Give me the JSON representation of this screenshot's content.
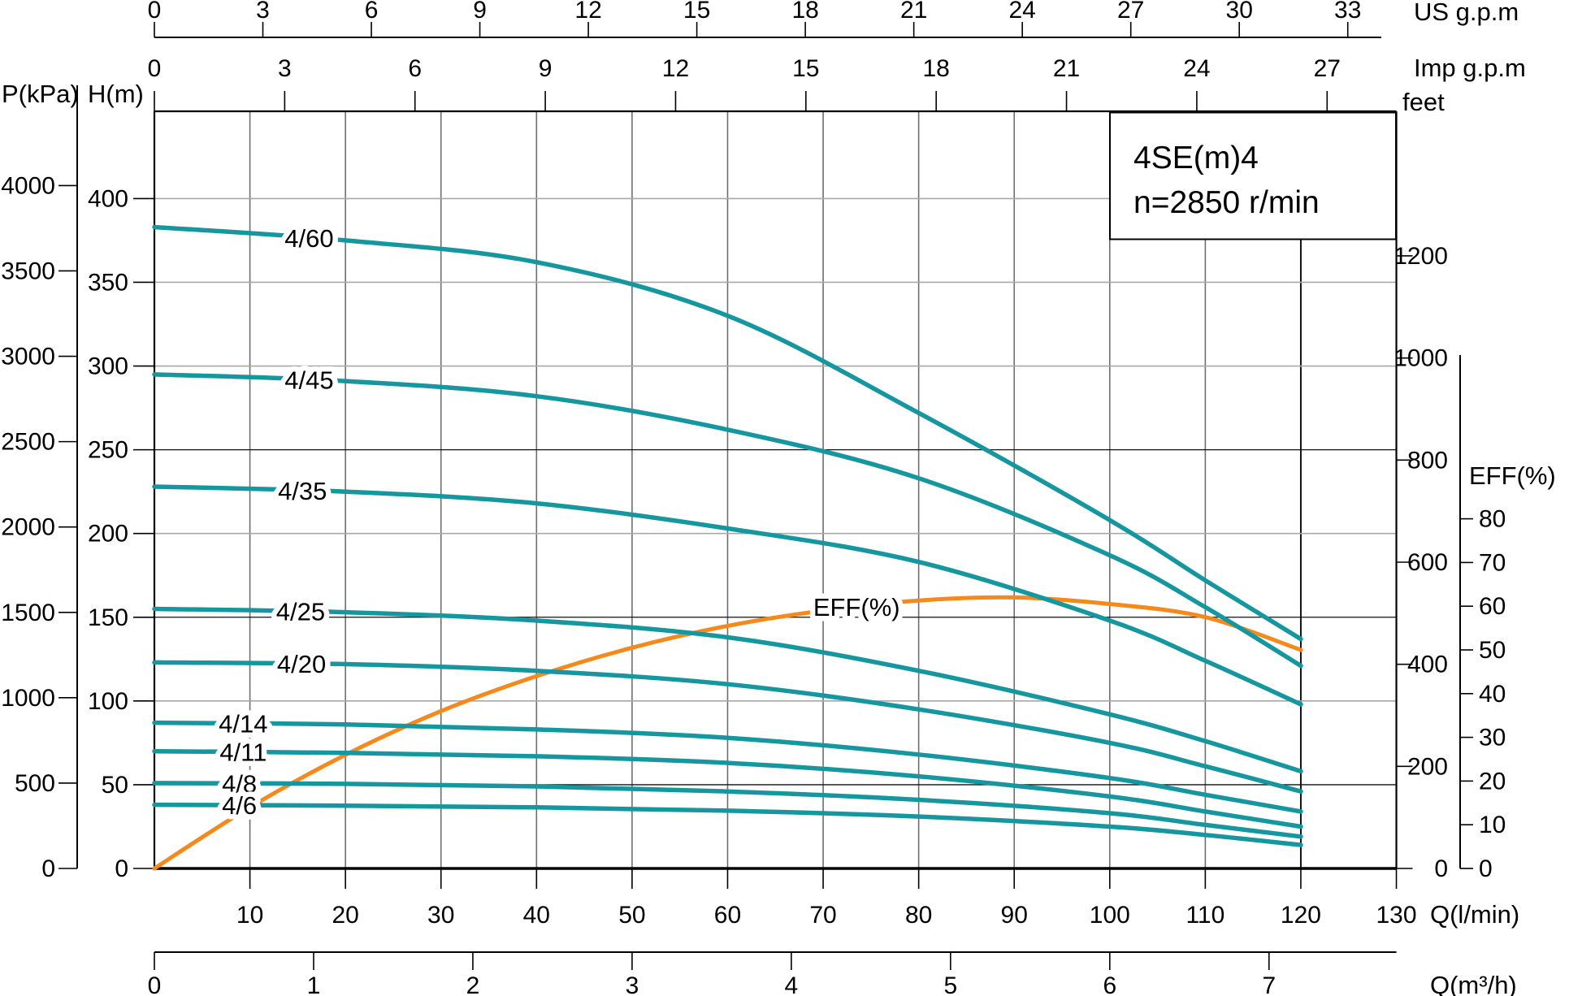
{
  "title_box": {
    "model": "4SE(m)4",
    "speed": "n=2850 r/min"
  },
  "colors": {
    "head_curve": "#1697A0",
    "efficiency_curve": "#F5891C",
    "grid_gray": "#A8A8A8",
    "grid_vertical": "#6E6E6E",
    "grid_black": "#111111",
    "border": "#000000",
    "background": "#FFFFFF"
  },
  "axes": {
    "us_gpm": {
      "label": "US g.p.m",
      "ticks": [
        0,
        3,
        6,
        9,
        12,
        15,
        18,
        21,
        24,
        27,
        30,
        33
      ]
    },
    "imp_gpm": {
      "label": "Imp g.p.m",
      "ticks": [
        0,
        3,
        6,
        9,
        12,
        15,
        18,
        21,
        24,
        27
      ]
    },
    "p_kpa": {
      "label": "P(kPa)",
      "ticks": [
        0,
        500,
        1000,
        1500,
        2000,
        2500,
        3000,
        3500,
        4000
      ]
    },
    "h_m": {
      "label": "H(m)",
      "ticks": [
        0,
        50,
        100,
        150,
        200,
        250,
        300,
        350,
        400
      ]
    },
    "feet": {
      "label": "feet",
      "ticks": [
        0,
        200,
        400,
        600,
        800,
        1000,
        1200
      ]
    },
    "eff": {
      "label": "EFF(%)",
      "ticks": [
        0,
        10,
        20,
        30,
        40,
        50,
        60,
        70,
        80
      ]
    },
    "q_lmin": {
      "label": "Q(l/min)",
      "ticks": [
        10,
        20,
        30,
        40,
        50,
        60,
        70,
        80,
        90,
        100,
        110,
        120,
        130
      ]
    },
    "q_m3h": {
      "label": "Q(m³/h)",
      "ticks": [
        0,
        1,
        2,
        3,
        4,
        5,
        6,
        7
      ]
    }
  },
  "chart_data": {
    "type": "line",
    "title": "4SE(m)4 n=2850 r/min",
    "xlabel": "Q(l/min)",
    "ylabel": "H(m)",
    "x_range_lmin": [
      0,
      130
    ],
    "curves_end_at_lmin": 120,
    "h_range_m": [
      0,
      400
    ],
    "grid": "on",
    "x": [
      0,
      20,
      40,
      60,
      80,
      100,
      110,
      120
    ],
    "series": [
      {
        "name": "4/60",
        "label_q": 16.2,
        "values": [
          383,
          375,
          362,
          330,
          272,
          208,
          172,
          137
        ]
      },
      {
        "name": "4/45",
        "label_q": 16.2,
        "values": [
          295,
          291,
          282,
          262,
          233,
          187,
          156,
          121
        ]
      },
      {
        "name": "4/35",
        "label_q": 15.5,
        "values": [
          228,
          225,
          218,
          203,
          183,
          148,
          124,
          98
        ]
      },
      {
        "name": "4/25",
        "label_q": 15.3,
        "values": [
          155,
          153,
          148,
          138,
          118,
          92,
          76,
          58
        ]
      },
      {
        "name": "4/20",
        "label_q": 15.4,
        "values": [
          123,
          122,
          118,
          110,
          95,
          75,
          61,
          46
        ]
      },
      {
        "name": "4/14",
        "label_q": 9.3,
        "values": [
          87,
          86,
          83,
          78,
          68,
          54,
          44,
          34
        ]
      },
      {
        "name": "4/11",
        "label_q": 9.3,
        "values": [
          70,
          69,
          67,
          63,
          55,
          43,
          34,
          25
        ]
      },
      {
        "name": "4/8",
        "label_q": 8.9,
        "values": [
          51,
          50.5,
          49,
          46,
          41,
          33,
          26,
          19
        ]
      },
      {
        "name": "4/6",
        "label_q": 8.9,
        "values": [
          38,
          37.5,
          36.5,
          34.5,
          31,
          25,
          20,
          14
        ]
      }
    ],
    "efficiency": {
      "name": "EFF(%)",
      "label_q": 73.5,
      "x": [
        0,
        10,
        20,
        30,
        40,
        50,
        60,
        70,
        80,
        90,
        100,
        110,
        120
      ],
      "values": [
        0,
        14,
        26,
        36,
        44,
        50.5,
        55.5,
        59,
        61.3,
        62,
        60.5,
        57.5,
        50
      ]
    }
  }
}
